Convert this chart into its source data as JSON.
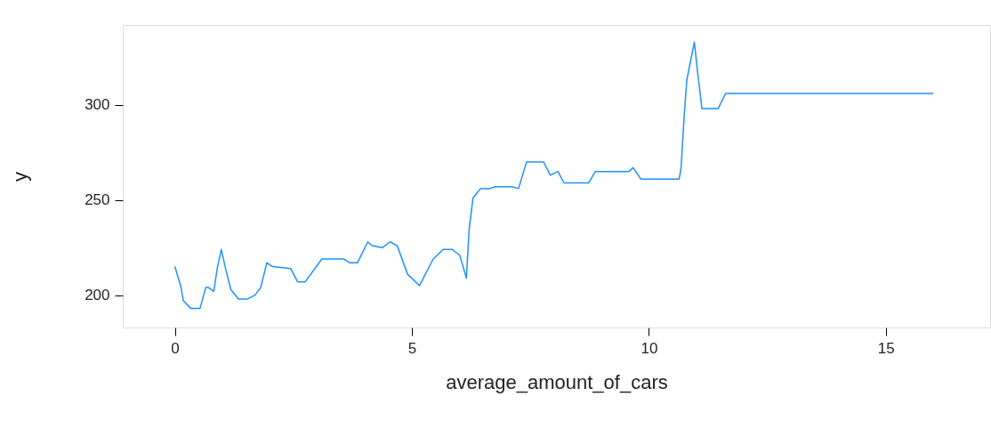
{
  "chart_data": {
    "type": "line",
    "xlabel": "average_amount_of_cars",
    "ylabel": "y",
    "xlim": [
      -1.1,
      17.2
    ],
    "ylim": [
      183,
      342
    ],
    "xticks": [
      0,
      5,
      10,
      15
    ],
    "yticks": [
      200,
      250,
      300
    ],
    "grid": false,
    "marker": "none",
    "line_style": "solid",
    "series": [
      {
        "color": "#1e90ff",
        "x": [
          0,
          0.12,
          0.18,
          0.34,
          0.53,
          0.65,
          0.71,
          0.82,
          0.9,
          0.98,
          1.06,
          1.18,
          1.34,
          1.53,
          1.69,
          1.81,
          1.94,
          2.06,
          2.44,
          2.59,
          2.75,
          3.1,
          3.57,
          3.69,
          3.85,
          4.07,
          4.16,
          4.38,
          4.54,
          4.69,
          4.91,
          5.16,
          5.45,
          5.66,
          5.85,
          6.01,
          6.15,
          6.21,
          6.29,
          6.45,
          6.64,
          6.76,
          7.11,
          7.25,
          7.42,
          7.78,
          7.92,
          8.08,
          8.21,
          8.73,
          8.87,
          9.58,
          9.67,
          9.83,
          10.64,
          10.68,
          10.74,
          10.8,
          10.96,
          11.02,
          11.12,
          11.46,
          11.62,
          16
        ],
        "values": [
          215,
          205,
          197,
          193,
          193,
          204,
          204,
          202,
          215,
          224,
          215,
          203,
          198,
          198,
          200,
          204,
          217,
          215,
          214,
          207,
          207,
          219,
          219,
          217,
          217,
          228,
          226,
          225,
          228,
          226,
          211,
          205,
          219,
          224,
          224,
          221,
          209,
          235,
          251,
          256,
          256,
          257,
          257,
          256,
          270,
          270,
          263,
          265,
          259,
          259,
          265,
          265,
          267,
          261,
          261,
          267,
          292,
          313,
          333,
          319,
          298,
          298,
          306,
          306
        ]
      }
    ]
  }
}
